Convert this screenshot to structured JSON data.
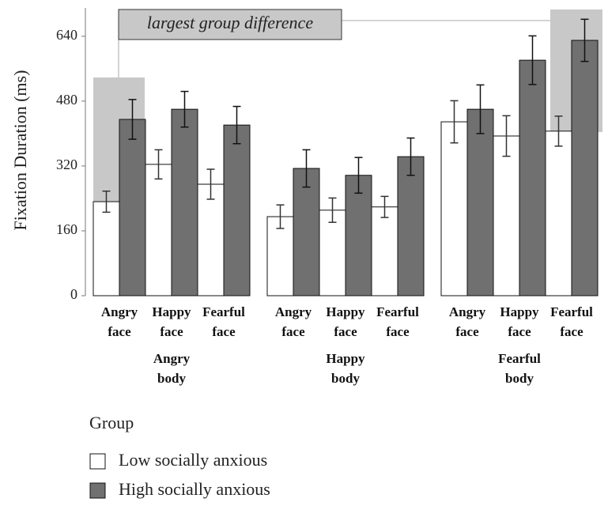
{
  "chart_data": {
    "type": "bar",
    "y_label": "Fixation Duration (ms)",
    "annotation": "largest group difference",
    "categories": [
      "Angry face",
      "Happy face",
      "Fearful face",
      "Angry face",
      "Happy face",
      "Fearful face",
      "Angry face",
      "Happy face",
      "Fearful face"
    ],
    "groups": [
      "Angry body",
      "Happy body",
      "Fearful body"
    ],
    "legend_title": "Group",
    "series": [
      {
        "name": "Low socially anxious",
        "color": "#ffffff",
        "values": [
          232,
          324,
          275,
          195,
          211,
          219,
          429,
          394,
          406
        ],
        "errors": [
          26,
          36,
          37,
          29,
          30,
          26,
          52,
          50,
          37
        ]
      },
      {
        "name": "High socially anxious",
        "color": "#707070",
        "values": [
          435,
          460,
          421,
          314,
          297,
          343,
          460,
          581,
          630
        ],
        "errors": [
          49,
          44,
          46,
          46,
          44,
          46,
          60,
          60,
          52
        ]
      }
    ],
    "ylim": [
      0,
      710
    ],
    "yticks": [
      0,
      160,
      320,
      480,
      640
    ]
  }
}
